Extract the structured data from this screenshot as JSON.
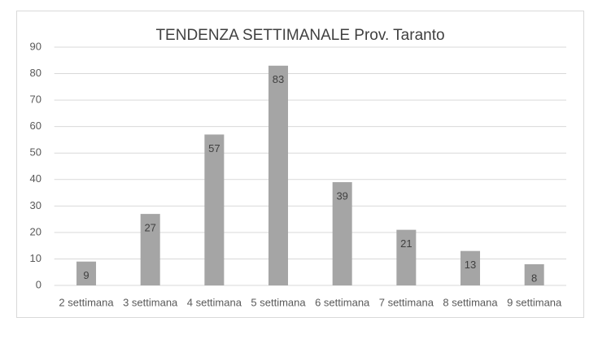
{
  "chart_data": {
    "type": "bar",
    "title": "TENDENZA SETTIMANALE Prov. Taranto",
    "categories": [
      "2 settimana",
      "3 settimana",
      "4 settimana",
      "5 settimana",
      "6 settimana",
      "7 settimana",
      "8 settimana",
      "9 settimana"
    ],
    "values": [
      9,
      27,
      57,
      83,
      39,
      21,
      13,
      8
    ],
    "color": "#a5a5a5",
    "ylim": [
      0,
      90
    ],
    "yticks": [
      0,
      10,
      20,
      30,
      40,
      50,
      60,
      70,
      80,
      90
    ],
    "grid": true,
    "data_labels": true
  }
}
